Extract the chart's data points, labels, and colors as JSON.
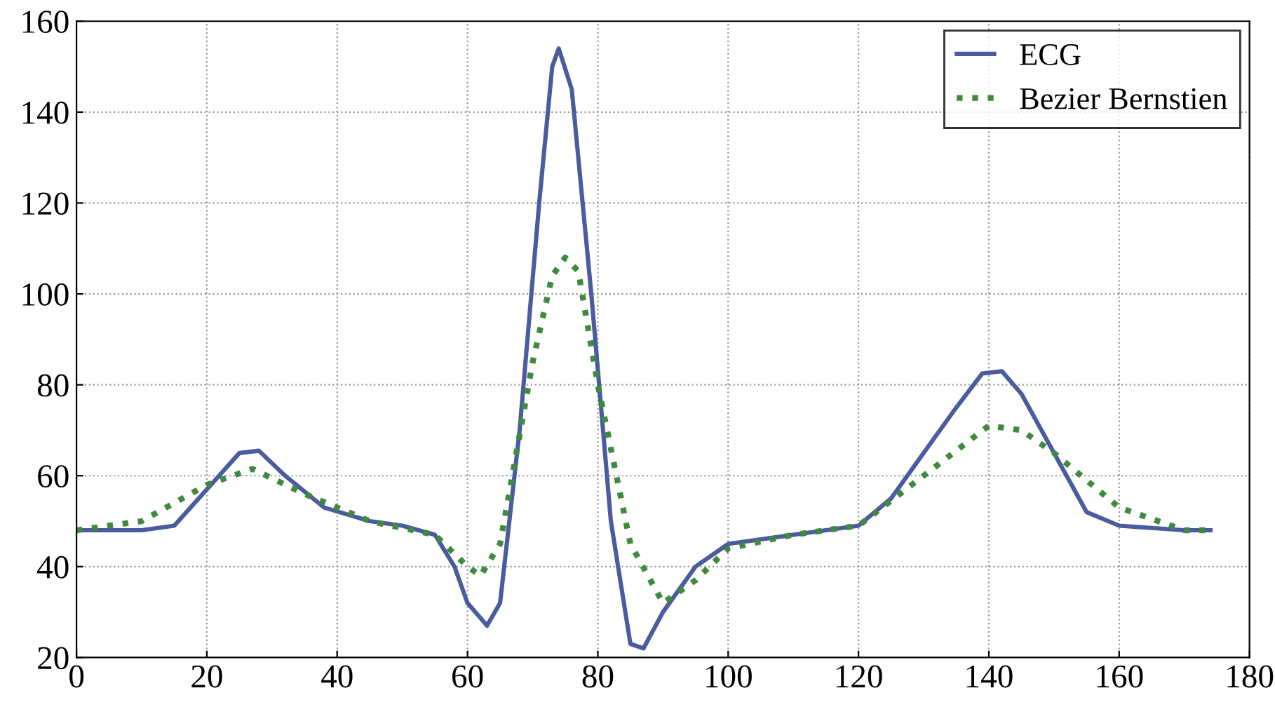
{
  "chart_data": {
    "type": "line",
    "xlim": [
      0,
      180
    ],
    "ylim": [
      20,
      160
    ],
    "xticks": [
      0,
      20,
      40,
      60,
      80,
      100,
      120,
      140,
      160,
      180
    ],
    "yticks": [
      20,
      40,
      60,
      80,
      100,
      120,
      140,
      160
    ],
    "grid": true,
    "legend": "top right",
    "series": [
      {
        "name": "ECG",
        "color": "#4a5c9e",
        "line_style": "solid",
        "x": [
          0,
          10,
          15,
          20,
          25,
          28,
          32,
          38,
          45,
          50,
          55,
          58,
          60,
          63,
          65,
          68,
          71,
          73,
          74,
          76,
          79,
          82,
          85,
          87,
          90,
          95,
          100,
          110,
          120,
          125,
          130,
          135,
          139,
          142,
          145,
          150,
          155,
          160,
          170,
          174
        ],
        "values": [
          48,
          48,
          49,
          57,
          65,
          65.5,
          60,
          53,
          50,
          49,
          47,
          40,
          32,
          27,
          32,
          70,
          120,
          150,
          154,
          145,
          100,
          50,
          23,
          22,
          30,
          40,
          45,
          47,
          49,
          55,
          65,
          75,
          82.5,
          83,
          78,
          65,
          52,
          49,
          48,
          48
        ]
      },
      {
        "name": "Bezier Bernstien",
        "color": "#3f8a3f",
        "line_style": "dotted",
        "x": [
          0,
          10,
          20,
          27,
          35,
          45,
          55,
          60,
          62,
          65,
          70,
          73,
          75,
          77,
          80,
          85,
          90,
          95,
          100,
          110,
          120,
          130,
          140,
          145,
          150,
          160,
          170,
          174
        ],
        "values": [
          48,
          50,
          58,
          61.5,
          56,
          50,
          47,
          40,
          38,
          45,
          85,
          104,
          108,
          105,
          80,
          45,
          32,
          37,
          44,
          47,
          49,
          60,
          71,
          70,
          65,
          53,
          48,
          48
        ]
      }
    ]
  }
}
